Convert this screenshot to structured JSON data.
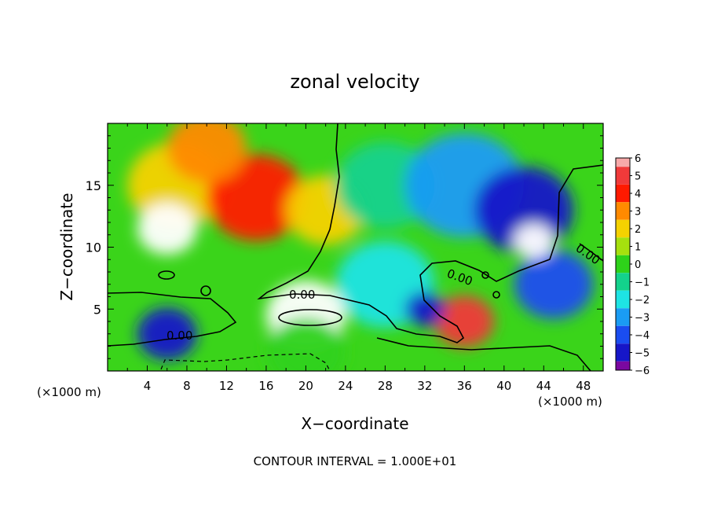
{
  "chart_data": {
    "type": "heatmap",
    "title": "zonal velocity",
    "xlabel": "X−coordinate",
    "ylabel": "Z−coordinate",
    "x_unit_label": "(×1000 m)",
    "x_unit_label_right": "(×1000 m)",
    "xlim": [
      0,
      50
    ],
    "ylim": [
      0,
      20
    ],
    "x_ticks": [
      "4",
      "8",
      "12",
      "16",
      "20",
      "24",
      "28",
      "32",
      "36",
      "40",
      "44",
      "48"
    ],
    "y_ticks": [
      "5",
      "10",
      "15"
    ],
    "colorbar": {
      "labels": [
        "6",
        "5",
        "4",
        "3",
        "2",
        "1",
        "0",
        "−1",
        "−2",
        "−3",
        "−4",
        "−5",
        "−6"
      ],
      "colors": [
        "#f7a9a9",
        "#f03a3a",
        "#ff1a00",
        "#ff8a00",
        "#f5d200",
        "#a6e00e",
        "#2ed21a",
        "#13d28c",
        "#1ee4e4",
        "#1a9cf4",
        "#1a4df0",
        "#1616c8",
        "#7a08a0"
      ]
    },
    "contour_labels": [
      "0.00",
      "0.00",
      "0.00",
      "0.00"
    ],
    "footer": "CONTOUR INTERVAL = 1.000E+01",
    "field_description_blobs": [
      {
        "x": 7,
        "z": 15,
        "r": 5,
        "value": 2
      },
      {
        "x": 15,
        "z": 14,
        "r": 5,
        "value": 4
      },
      {
        "x": 10,
        "z": 18,
        "r": 4,
        "value": 3
      },
      {
        "x": 22,
        "z": 13,
        "r": 4,
        "value": 2
      },
      {
        "x": 28,
        "z": 15,
        "r": 5,
        "value": -1
      },
      {
        "x": 36,
        "z": 15,
        "r": 6,
        "value": -3
      },
      {
        "x": 42,
        "z": 13,
        "r": 5,
        "value": -5
      },
      {
        "x": 45,
        "z": 7,
        "r": 4,
        "value": -4
      },
      {
        "x": 28,
        "z": 7,
        "r": 5,
        "value": -2
      },
      {
        "x": 6,
        "z": 11.5,
        "r": 3,
        "value": 6
      },
      {
        "x": 20,
        "z": 4.5,
        "r": 4,
        "value": 6
      },
      {
        "x": 6,
        "z": 3,
        "r": 3,
        "value": -5
      },
      {
        "x": 20,
        "z": 1.5,
        "r": 4,
        "value": 0
      },
      {
        "x": 36,
        "z": 4,
        "r": 3,
        "value": 5
      },
      {
        "x": 43,
        "z": 10.5,
        "r": 2,
        "value": 6
      },
      {
        "x": 32,
        "z": 5,
        "r": 2,
        "value": -5
      }
    ]
  }
}
